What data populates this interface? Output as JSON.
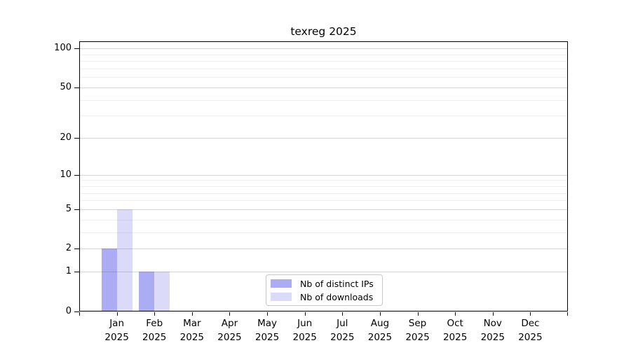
{
  "chart_data": {
    "type": "bar",
    "title": "texreg 2025",
    "categories": [
      "Jan",
      "Feb",
      "Mar",
      "Apr",
      "May",
      "Jun",
      "Jul",
      "Aug",
      "Sep",
      "Oct",
      "Nov",
      "Dec"
    ],
    "x_year_label": "2025",
    "series": [
      {
        "name": "Nb of distinct IPs",
        "color": "#acacf4",
        "values": [
          2,
          1,
          0,
          0,
          0,
          0,
          0,
          0,
          0,
          0,
          0,
          0
        ]
      },
      {
        "name": "Nb of downloads",
        "color": "#dbdbf9",
        "values": [
          5,
          1,
          0,
          0,
          0,
          0,
          0,
          0,
          0,
          0,
          0,
          0
        ]
      }
    ],
    "y_axis": {
      "scale": "log1p",
      "tick_values": [
        0,
        1,
        2,
        5,
        10,
        20,
        50,
        100
      ],
      "minor_gridline_values": [
        3,
        4,
        6,
        7,
        8,
        9,
        30,
        40,
        60,
        70,
        80,
        90
      ],
      "range_top_value": 115
    },
    "grid": "horizontal",
    "legend_position": "bottom-center",
    "colors": {
      "bar_distinct_ips": "#acacf4",
      "bar_downloads": "#dbdbf9",
      "axis": "#000000",
      "major_grid": "#d6d6d6",
      "minor_grid": "#f0f0f0",
      "background": "#ffffff"
    }
  }
}
